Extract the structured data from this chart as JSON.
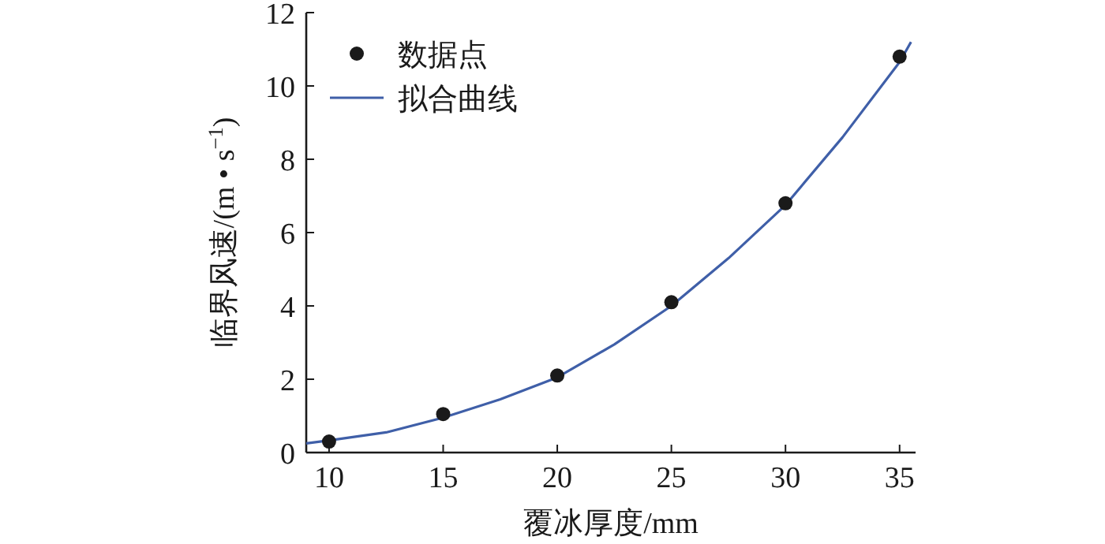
{
  "chart_data": {
    "type": "scatter",
    "xlabel": "覆冰厚度/mm",
    "ylabel": "临界风速/(m • s$^{−1}$)",
    "xlim": [
      9,
      35.7
    ],
    "ylim": [
      0,
      12
    ],
    "xticks": [
      10,
      15,
      20,
      25,
      30,
      35
    ],
    "yticks": [
      0,
      2,
      4,
      6,
      8,
      10,
      12
    ],
    "grid": false,
    "legend": "top left",
    "series": [
      {
        "name": "数据点",
        "color": "#1a1a1a",
        "marker": "circle",
        "x": [
          10,
          15,
          20,
          25,
          30,
          35
        ],
        "values": [
          0.3,
          1.05,
          2.1,
          4.1,
          6.8,
          10.8
        ]
      },
      {
        "name": "拟合曲线",
        "type": "line",
        "color": "#3f5fa8",
        "marker": "none",
        "line_style": "solid",
        "x": [
          9,
          10,
          12.5,
          15,
          17.5,
          20,
          22.5,
          25,
          27.5,
          30,
          32.5,
          35,
          35.5
        ],
        "values": [
          0.25,
          0.33,
          0.55,
          0.95,
          1.45,
          2.05,
          2.95,
          4.0,
          5.3,
          6.75,
          8.6,
          10.65,
          11.2
        ]
      }
    ]
  }
}
